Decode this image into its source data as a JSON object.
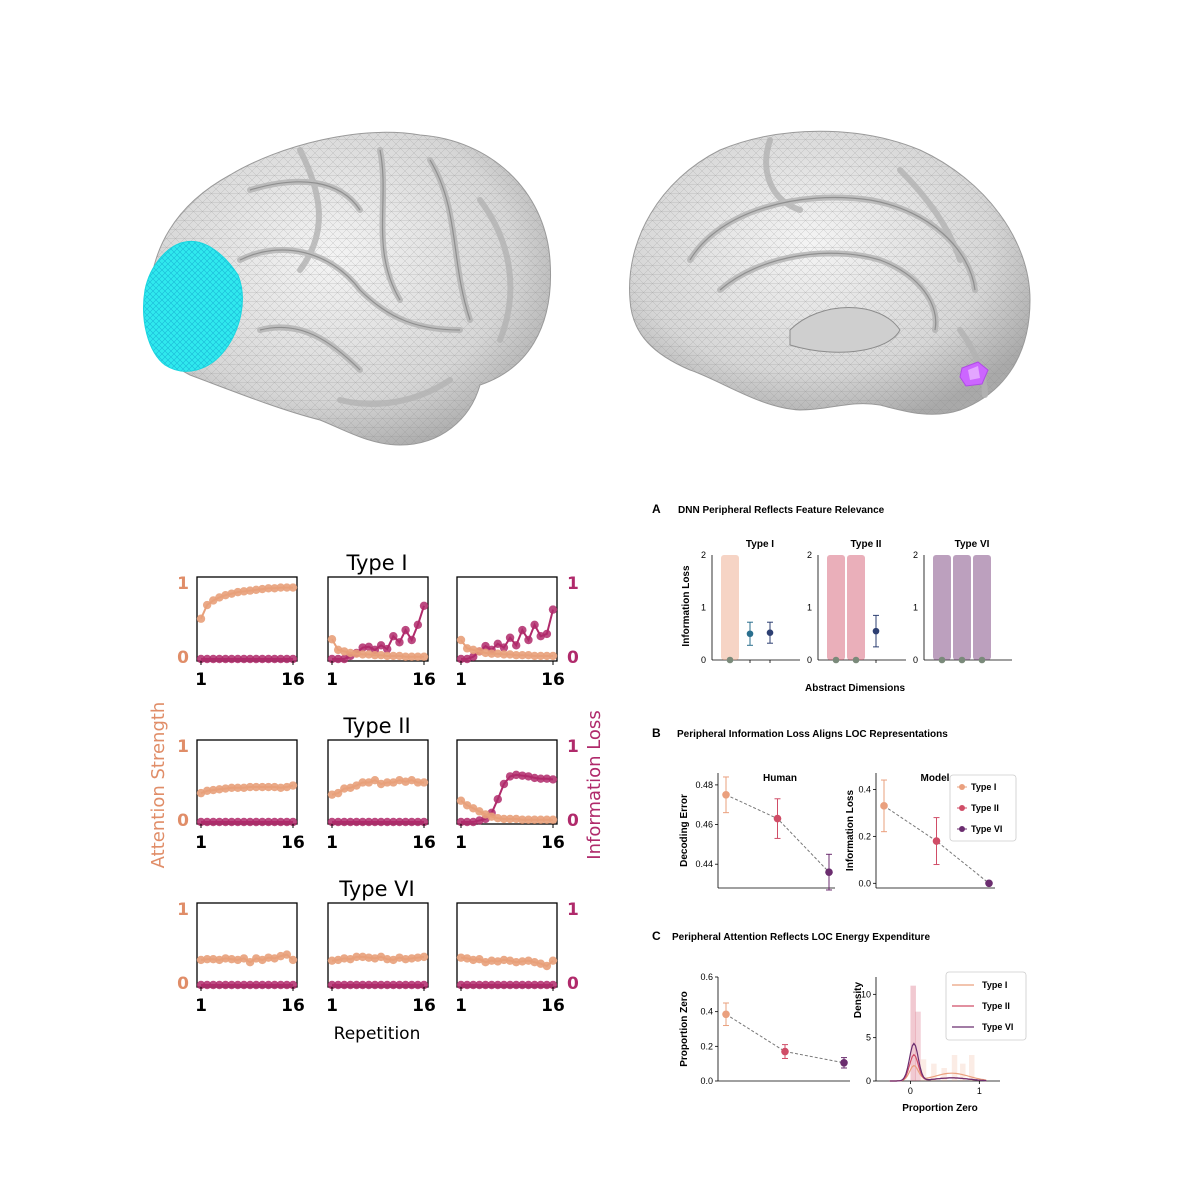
{
  "colors": {
    "orange": "#e8a07a",
    "magenta": "#b02a6b",
    "attnLabel": "#e08d68",
    "infoLabel": "#b02a6b",
    "cyan": "#2fe9ee",
    "violet": "#cc66ff",
    "type1": "#eaa07e",
    "type2": "#d04d67",
    "type6": "#6b2d6f",
    "teal": "#2a6f8e",
    "navy": "#2d3f72"
  },
  "brains": {
    "lateral_label": "lateral-brain",
    "medial_label": "medial-brain"
  },
  "left": {
    "rows": [
      {
        "title": "Type I"
      },
      {
        "title": "Type II"
      },
      {
        "title": "Type VI"
      }
    ],
    "ylabel_left": "Attention Strength",
    "ylabel_right": "Information Loss",
    "xlabel": "Repetition",
    "xtick_start": "1",
    "xtick_end": "16",
    "ytick_top": "1",
    "ytick_bottom": "0"
  },
  "right": {
    "A": {
      "letter": "A",
      "title": "DNN Peripheral Reflects Feature Relevance",
      "ylabel": "Information Loss",
      "xlabel": "Abstract Dimensions",
      "yticks": [
        "0",
        "1",
        "2"
      ]
    },
    "B": {
      "letter": "B",
      "title": "Peripheral Information Loss Aligns LOC Representations",
      "human_title": "Human",
      "model_title": "Model",
      "human_ylabel": "Decoding Error",
      "model_ylabel": "Information Loss",
      "human_yticks": [
        "0.44",
        "0.46",
        "0.48"
      ],
      "model_yticks": [
        "0.0",
        "0.2",
        "0.4"
      ]
    },
    "C": {
      "letter": "C",
      "title": "Peripheral Attention Reflects LOC Energy Expenditure",
      "left_ylabel": "Proportion Zero",
      "left_yticks": [
        "0.0",
        "0.2",
        "0.4",
        "0.6"
      ],
      "right_ylabel": "Density",
      "right_xlabel": "Proportion Zero",
      "right_yticks": [
        "0",
        "5",
        "10"
      ],
      "right_xticks": [
        "0",
        "1"
      ]
    }
  },
  "chart_data": [
    {
      "type": "line",
      "title": "Type I",
      "xlabel": "Repetition",
      "ylabel": "Attention Strength / Information Loss",
      "x": [
        1,
        2,
        3,
        4,
        5,
        6,
        7,
        8,
        9,
        10,
        11,
        12,
        13,
        14,
        15,
        16
      ],
      "ylim": [
        0,
        1
      ],
      "panels": [
        {
          "attention": [
            0.53,
            0.71,
            0.77,
            0.81,
            0.84,
            0.86,
            0.88,
            0.89,
            0.9,
            0.91,
            0.92,
            0.93,
            0.93,
            0.94,
            0.94,
            0.94
          ],
          "info_loss": [
            0,
            0,
            0,
            0,
            0,
            0,
            0,
            0,
            0,
            0,
            0,
            0,
            0,
            0,
            0,
            0
          ]
        },
        {
          "attention": [
            0.26,
            0.12,
            0.1,
            0.08,
            0.07,
            0.06,
            0.06,
            0.05,
            0.05,
            0.04,
            0.04,
            0.04,
            0.03,
            0.03,
            0.03,
            0.03
          ],
          "info_loss": [
            0,
            0,
            0,
            0.04,
            0.08,
            0.15,
            0.16,
            0.12,
            0.18,
            0.13,
            0.3,
            0.22,
            0.38,
            0.25,
            0.45,
            0.7
          ]
        },
        {
          "attention": [
            0.25,
            0.14,
            0.12,
            0.1,
            0.08,
            0.07,
            0.07,
            0.06,
            0.06,
            0.05,
            0.05,
            0.05,
            0.04,
            0.04,
            0.04,
            0.04
          ],
          "info_loss": [
            0,
            0,
            0.03,
            0.1,
            0.17,
            0.12,
            0.2,
            0.15,
            0.28,
            0.18,
            0.38,
            0.25,
            0.45,
            0.3,
            0.33,
            0.65
          ]
        }
      ]
    },
    {
      "type": "line",
      "title": "Type II",
      "xlabel": "Repetition",
      "x": [
        1,
        2,
        3,
        4,
        5,
        6,
        7,
        8,
        9,
        10,
        11,
        12,
        13,
        14,
        15,
        16
      ],
      "ylim": [
        0,
        1
      ],
      "panels": [
        {
          "attention": [
            0.38,
            0.41,
            0.42,
            0.43,
            0.44,
            0.45,
            0.45,
            0.45,
            0.46,
            0.46,
            0.46,
            0.46,
            0.46,
            0.45,
            0.46,
            0.48
          ],
          "info_loss": [
            0,
            0,
            0,
            0,
            0,
            0,
            0,
            0,
            0,
            0,
            0,
            0,
            0,
            0,
            0,
            0
          ]
        },
        {
          "attention": [
            0.36,
            0.38,
            0.44,
            0.45,
            0.48,
            0.52,
            0.52,
            0.55,
            0.5,
            0.52,
            0.52,
            0.55,
            0.53,
            0.55,
            0.52,
            0.52
          ],
          "info_loss": [
            0,
            0,
            0,
            0,
            0,
            0,
            0,
            0,
            0,
            0,
            0,
            0,
            0,
            0,
            0,
            0
          ]
        },
        {
          "attention": [
            0.28,
            0.22,
            0.18,
            0.14,
            0.1,
            0.07,
            0.05,
            0.04,
            0.04,
            0.04,
            0.03,
            0.03,
            0.03,
            0.03,
            0.03,
            0.03
          ],
          "info_loss": [
            0,
            0,
            0,
            0.02,
            0.04,
            0.12,
            0.3,
            0.5,
            0.6,
            0.62,
            0.61,
            0.6,
            0.58,
            0.57,
            0.57,
            0.56
          ]
        }
      ]
    },
    {
      "type": "line",
      "title": "Type VI",
      "xlabel": "Repetition",
      "x": [
        1,
        2,
        3,
        4,
        5,
        6,
        7,
        8,
        9,
        10,
        11,
        12,
        13,
        14,
        15,
        16
      ],
      "ylim": [
        0,
        1
      ],
      "panels": [
        {
          "attention": [
            0.33,
            0.34,
            0.34,
            0.33,
            0.35,
            0.34,
            0.33,
            0.35,
            0.3,
            0.35,
            0.33,
            0.36,
            0.35,
            0.38,
            0.4,
            0.33
          ],
          "info_loss": [
            0,
            0,
            0,
            0,
            0,
            0,
            0,
            0,
            0,
            0,
            0,
            0,
            0,
            0,
            0,
            0
          ]
        },
        {
          "attention": [
            0.32,
            0.33,
            0.35,
            0.34,
            0.37,
            0.37,
            0.36,
            0.35,
            0.37,
            0.34,
            0.33,
            0.36,
            0.34,
            0.35,
            0.36,
            0.37
          ],
          "info_loss": [
            0,
            0,
            0,
            0,
            0,
            0,
            0,
            0,
            0,
            0,
            0,
            0,
            0,
            0,
            0,
            0
          ]
        },
        {
          "attention": [
            0.36,
            0.35,
            0.33,
            0.34,
            0.3,
            0.32,
            0.31,
            0.33,
            0.32,
            0.3,
            0.31,
            0.32,
            0.3,
            0.28,
            0.25,
            0.32
          ],
          "info_loss": [
            0,
            0,
            0,
            0,
            0,
            0,
            0,
            0,
            0,
            0,
            0,
            0,
            0,
            0,
            0,
            0
          ]
        }
      ]
    },
    {
      "type": "bar",
      "title": "DNN Peripheral Reflects Feature Relevance",
      "xlabel": "Abstract Dimensions",
      "ylabel": "Information Loss",
      "ylim": [
        0,
        2
      ],
      "panels": [
        {
          "title": "Type I",
          "bars": [
            2.0,
            0,
            0
          ],
          "points": [
            0.0,
            0.5,
            0.52
          ],
          "errors": [
            0,
            0.22,
            0.2
          ]
        },
        {
          "title": "Type II",
          "bars": [
            2.0,
            2.0,
            0
          ],
          "points": [
            0.0,
            0.0,
            0.55
          ],
          "errors": [
            0,
            0,
            0.3
          ]
        },
        {
          "title": "Type VI",
          "bars": [
            2.0,
            2.0,
            2.0
          ],
          "points": [
            0.0,
            0.0,
            0.0
          ],
          "errors": [
            0,
            0,
            0
          ]
        }
      ]
    },
    {
      "type": "scatter",
      "title": "Human",
      "ylabel": "Decoding Error",
      "categories": [
        "Type I",
        "Type II",
        "Type VI"
      ],
      "values": [
        0.475,
        0.463,
        0.436
      ],
      "errors": [
        0.009,
        0.01,
        0.009
      ],
      "ylim": [
        0.428,
        0.486
      ]
    },
    {
      "type": "scatter",
      "title": "Model",
      "ylabel": "Information Loss",
      "categories": [
        "Type I",
        "Type II",
        "Type VI"
      ],
      "values": [
        0.33,
        0.18,
        0.0
      ],
      "errors": [
        0.11,
        0.1,
        0.0
      ],
      "ylim": [
        -0.02,
        0.47
      ],
      "legend": [
        "Type I",
        "Type II",
        "Type VI"
      ]
    },
    {
      "type": "scatter",
      "ylabel": "Proportion Zero",
      "categories": [
        "Type I",
        "Type II",
        "Type VI"
      ],
      "values": [
        0.385,
        0.17,
        0.105
      ],
      "errors": [
        0.065,
        0.04,
        0.03
      ],
      "ylim": [
        0,
        0.6
      ]
    },
    {
      "type": "area",
      "xlabel": "Proportion Zero",
      "ylabel": "Density",
      "xlim": [
        -0.5,
        1.3
      ],
      "ylim": [
        0,
        12
      ],
      "legend": [
        "Type I",
        "Type II",
        "Type VI"
      ],
      "series": [
        {
          "name": "Type I",
          "peak_x": 0.05,
          "peak_density": 1.7,
          "tail_to": 1.0
        },
        {
          "name": "Type II",
          "peak_x": 0.05,
          "peak_density": 3.0,
          "tail_to": 0.7
        },
        {
          "name": "Type VI",
          "peak_x": 0.05,
          "peak_density": 4.3,
          "tail_to": 0.6
        }
      ]
    }
  ]
}
